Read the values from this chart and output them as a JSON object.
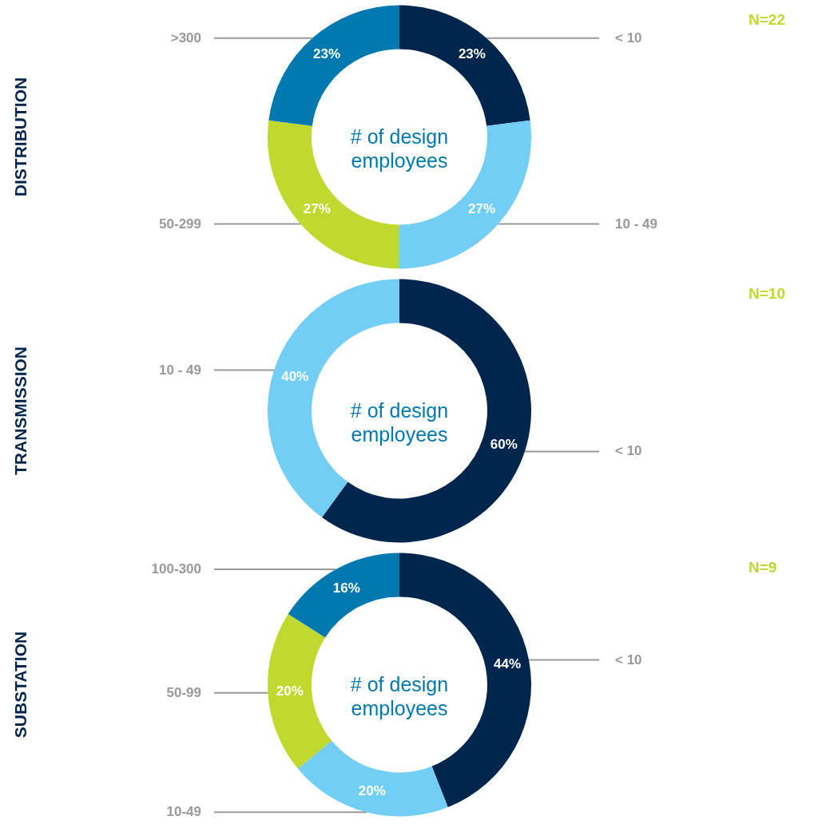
{
  "chart_data": [
    {
      "type": "donut",
      "title": "DISTRIBUTION",
      "categories": [
        "< 10",
        "10 - 49",
        "50-299",
        ">300"
      ],
      "values": [
        23,
        27,
        27,
        23
      ],
      "value_labels": [
        "23%",
        "27%",
        "27%",
        "23%"
      ],
      "colors": [
        "#00264d",
        "#72cef4",
        "#c1d82f",
        "#0079b0"
      ],
      "annotations": [
        "# of design\nemployees",
        "N=22"
      ]
    },
    {
      "type": "donut",
      "title": "TRANSMISSION",
      "categories": [
        "< 10",
        "10 - 49"
      ],
      "values": [
        60,
        40
      ],
      "value_labels": [
        "60%",
        "40%"
      ],
      "colors": [
        "#00264d",
        "#72cef4"
      ],
      "annotations": [
        "# of design\nemployees",
        "N=10"
      ]
    },
    {
      "type": "donut",
      "title": "SUBSTATION",
      "categories": [
        "< 10",
        "10-49",
        "50-99",
        "100-300"
      ],
      "values": [
        44,
        20,
        20,
        16
      ],
      "value_labels": [
        "44%",
        "20%",
        "20%",
        "16%"
      ],
      "colors": [
        "#00264d",
        "#72cef4",
        "#c1d82f",
        "#0079b0"
      ],
      "annotations": [
        "# of design\nemployees",
        "N=9"
      ]
    }
  ]
}
